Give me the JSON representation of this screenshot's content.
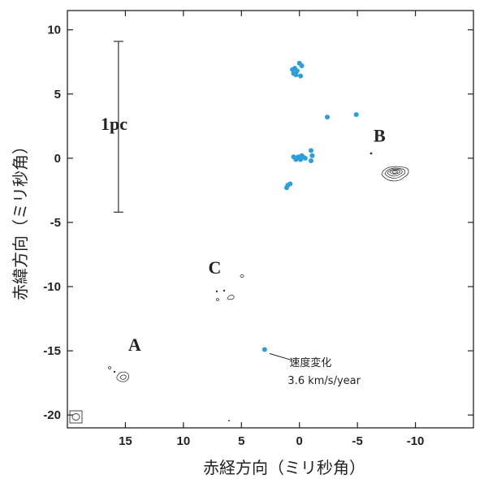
{
  "chart_data": {
    "type": "scatter",
    "xlabel": "赤経方向（ミリ秒角）",
    "ylabel": "赤緯方向（ミリ秒角）",
    "xlim": [
      20,
      -15
    ],
    "ylim": [
      -21,
      11.5
    ],
    "x_ticks": [
      15,
      10,
      5,
      0,
      -5,
      -10
    ],
    "x_tick_labels": [
      "15",
      "10",
      "5",
      "0",
      "-5",
      "-10"
    ],
    "y_ticks": [
      10,
      5,
      0,
      -5,
      -10,
      -15,
      -20
    ],
    "y_tick_labels": [
      "10",
      "5",
      "0",
      "-5",
      "-10",
      "-15",
      "-20"
    ],
    "grid": false,
    "accent_color": "#2a9fdc",
    "scale_bar": {
      "label": "1pc",
      "x": 15.6,
      "y_from": -4.2,
      "y_to": 9.1
    },
    "regions": [
      {
        "label": "A",
        "x": 14.2,
        "y": -15.0
      },
      {
        "label": "B",
        "x": -6.9,
        "y": 1.3
      },
      {
        "label": "C",
        "x": 7.3,
        "y": -9.0
      }
    ],
    "maser_points": [
      {
        "x": 0.6,
        "y": 6.9
      },
      {
        "x": 0.4,
        "y": 7.0
      },
      {
        "x": 0.2,
        "y": 6.8
      },
      {
        "x": 0.5,
        "y": 6.6
      },
      {
        "x": 0.3,
        "y": 6.5
      },
      {
        "x": 0.0,
        "y": 7.4
      },
      {
        "x": -0.2,
        "y": 7.2
      },
      {
        "x": -0.1,
        "y": 6.4
      },
      {
        "x": -2.4,
        "y": 3.2
      },
      {
        "x": -4.9,
        "y": 3.4
      },
      {
        "x": 0.5,
        "y": 0.1
      },
      {
        "x": 0.3,
        "y": -0.1
      },
      {
        "x": 0.1,
        "y": 0.1
      },
      {
        "x": -0.1,
        "y": -0.1
      },
      {
        "x": -0.3,
        "y": 0.1
      },
      {
        "x": -0.5,
        "y": 0.0
      },
      {
        "x": -0.2,
        "y": 0.2
      },
      {
        "x": 0.0,
        "y": 0.0
      },
      {
        "x": -1.0,
        "y": 0.6
      },
      {
        "x": -1.1,
        "y": 0.2
      },
      {
        "x": -1.0,
        "y": -0.2
      },
      {
        "x": 1.0,
        "y": -2.1
      },
      {
        "x": 0.8,
        "y": -2.0
      },
      {
        "x": 1.1,
        "y": -2.3
      },
      {
        "x": 3.0,
        "y": -14.9
      }
    ],
    "annotations": [
      {
        "text": "速度変化",
        "x": 1.0,
        "y": -16.0
      },
      {
        "text": "3.6 km/s/year",
        "x": 1.0,
        "y": -17.4
      }
    ]
  }
}
